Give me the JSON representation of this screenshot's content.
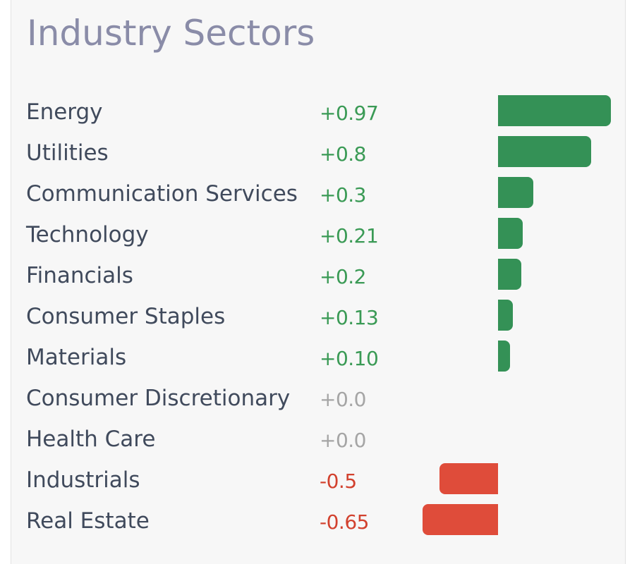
{
  "title": "Industry Sectors",
  "colors": {
    "positive_text": "#3a9a55",
    "neutral_text": "#a5a5a5",
    "negative_text": "#d2412e",
    "positive_bar": "#349156",
    "negative_bar": "#df4c3a",
    "title": "#8a8ca8"
  },
  "sectors": [
    {
      "name": "Energy",
      "change": "+0.97",
      "value": 0.97,
      "direction": "positive"
    },
    {
      "name": "Utilities",
      "change": "+0.8",
      "value": 0.8,
      "direction": "positive"
    },
    {
      "name": "Communication Services",
      "change": "+0.3",
      "value": 0.3,
      "direction": "positive"
    },
    {
      "name": "Technology",
      "change": "+0.21",
      "value": 0.21,
      "direction": "positive"
    },
    {
      "name": "Financials",
      "change": "+0.2",
      "value": 0.2,
      "direction": "positive"
    },
    {
      "name": "Consumer Staples",
      "change": "+0.13",
      "value": 0.13,
      "direction": "positive"
    },
    {
      "name": "Materials",
      "change": "+0.10",
      "value": 0.1,
      "direction": "positive"
    },
    {
      "name": "Consumer Discretionary",
      "change": "+0.0",
      "value": 0.0,
      "direction": "neutral"
    },
    {
      "name": "Health Care",
      "change": "+0.0",
      "value": 0.0,
      "direction": "neutral"
    },
    {
      "name": "Industrials",
      "change": "-0.5",
      "value": -0.5,
      "direction": "negative"
    },
    {
      "name": "Real Estate",
      "change": "-0.65",
      "value": -0.65,
      "direction": "negative"
    }
  ]
}
